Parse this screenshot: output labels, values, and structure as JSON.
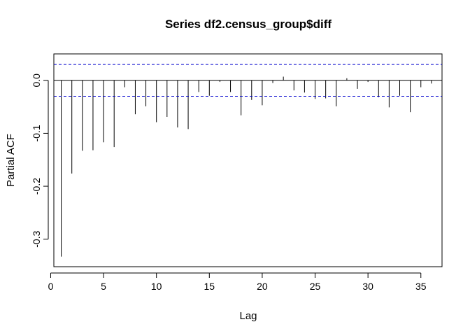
{
  "chart_data": {
    "type": "bar",
    "title": "Series  df2.census_group$diff",
    "xlabel": "Lag",
    "ylabel": "Partial ACF",
    "xlim": [
      0.3,
      37.0
    ],
    "ylim": [
      -0.352,
      0.05
    ],
    "x_ticks": [
      "0",
      "5",
      "10",
      "15",
      "20",
      "25",
      "30",
      "35"
    ],
    "y_ticks": [
      "0.0",
      "-0.1",
      "-0.2",
      "-0.3"
    ],
    "lags": [
      1,
      2,
      3,
      4,
      5,
      6,
      7,
      8,
      9,
      10,
      11,
      12,
      13,
      14,
      15,
      16,
      17,
      18,
      19,
      20,
      21,
      22,
      23,
      24,
      25,
      26,
      27,
      28,
      29,
      30,
      31,
      32,
      33,
      34,
      35,
      36
    ],
    "values": [
      -0.333,
      -0.176,
      -0.133,
      -0.132,
      -0.117,
      -0.126,
      -0.013,
      -0.064,
      -0.049,
      -0.079,
      -0.069,
      -0.089,
      -0.092,
      -0.022,
      -0.029,
      -0.003,
      -0.022,
      -0.066,
      -0.037,
      -0.047,
      -0.005,
      0.007,
      -0.019,
      -0.023,
      -0.035,
      -0.034,
      -0.049,
      0.004,
      -0.016,
      -0.003,
      -0.032,
      -0.051,
      -0.029,
      -0.06,
      -0.013,
      -0.006
    ],
    "confidence_bounds": [
      0.03,
      -0.03
    ],
    "zero_line": 0,
    "colors": {
      "bars": "#000000",
      "confidence": "#0000CD",
      "axes": "#000000"
    },
    "grid": false,
    "legend": "none"
  }
}
